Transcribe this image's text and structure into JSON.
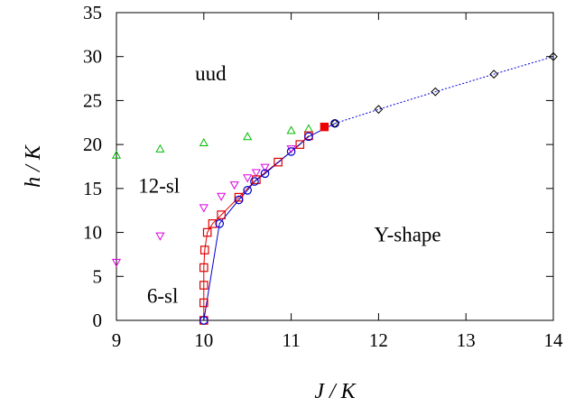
{
  "chart_data": {
    "type": "scatter",
    "title": "",
    "xlabel": "J / K",
    "ylabel": "h / K",
    "xlim": [
      9,
      14
    ],
    "ylim": [
      0,
      35
    ],
    "xticks": [
      9,
      10,
      11,
      12,
      13,
      14
    ],
    "yticks": [
      0,
      5,
      10,
      15,
      20,
      25,
      30,
      35
    ],
    "grid": false,
    "legend": "none",
    "annotations": [
      {
        "text": "uud",
        "x": 9.9,
        "y": 27.3
      },
      {
        "text": "12-sl",
        "x": 9.25,
        "y": 14.5
      },
      {
        "text": "6-sl",
        "x": 9.35,
        "y": 2.0
      },
      {
        "text": "Y-shape",
        "x": 11.95,
        "y": 9.0
      }
    ],
    "series": [
      {
        "marker": "triangle-up",
        "color": "#00bb00",
        "line": "none",
        "x": [
          9.0,
          9.5,
          10.0,
          10.5,
          11.0,
          11.2
        ],
        "y": [
          18.8,
          19.5,
          20.2,
          20.9,
          21.6,
          21.8
        ]
      },
      {
        "marker": "triangle-down",
        "color": "#dd00dd",
        "line": "none",
        "x": [
          9.0,
          9.5,
          10.0,
          10.2,
          10.35,
          10.5,
          10.6,
          10.7,
          11.0
        ],
        "y": [
          6.6,
          9.6,
          12.8,
          14.1,
          15.4,
          16.2,
          16.8,
          17.4,
          19.5
        ]
      },
      {
        "marker": "square",
        "color": "#dd0000",
        "line": "solid",
        "x": [
          10.0,
          10.0,
          10.0,
          10.0,
          10.01,
          10.04,
          10.1,
          10.2,
          10.4,
          10.6,
          10.85,
          11.1,
          11.2
        ],
        "y": [
          0,
          2,
          4,
          6,
          8,
          10,
          11,
          12,
          14,
          16,
          18,
          20,
          21
        ]
      },
      {
        "marker": "filled-square",
        "color": "#ee0000",
        "line": "none",
        "x": [
          11.38
        ],
        "y": [
          22.0
        ]
      },
      {
        "marker": "circle",
        "color": "#0000cc",
        "line": "solid",
        "x": [
          10.0,
          10.18,
          10.4,
          10.5,
          10.58,
          10.7,
          11.0,
          11.2,
          11.5
        ],
        "y": [
          0,
          11.0,
          13.7,
          14.8,
          15.8,
          16.7,
          19.2,
          20.9,
          22.4
        ]
      },
      {
        "marker": "diamond",
        "color": "#000000",
        "line": "dotted-blue",
        "x": [
          11.5,
          12.0,
          12.65,
          13.32,
          14.0
        ],
        "y": [
          22.4,
          24.0,
          26.0,
          28.0,
          30.0
        ]
      }
    ]
  }
}
